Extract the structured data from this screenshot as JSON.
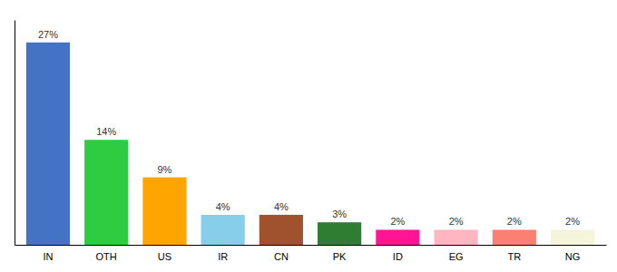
{
  "chart_data": {
    "type": "bar",
    "categories": [
      "IN",
      "OTH",
      "US",
      "IR",
      "CN",
      "PK",
      "ID",
      "EG",
      "TR",
      "NG"
    ],
    "values": [
      27,
      14,
      9,
      4,
      4,
      3,
      2,
      2,
      2,
      2
    ],
    "value_labels": [
      "27%",
      "14%",
      "9%",
      "4%",
      "4%",
      "3%",
      "2%",
      "2%",
      "2%",
      "2%"
    ],
    "colors": [
      "#4472C4",
      "#2ECC40",
      "#FFA500",
      "#87CEEB",
      "#A0522D",
      "#2E7D32",
      "#FF1493",
      "#FFB6C1",
      "#FA8072",
      "#F5F5DC"
    ],
    "ylim": [
      0,
      30
    ],
    "data_labels": true,
    "tick_labels": "x",
    "grid": false
  }
}
